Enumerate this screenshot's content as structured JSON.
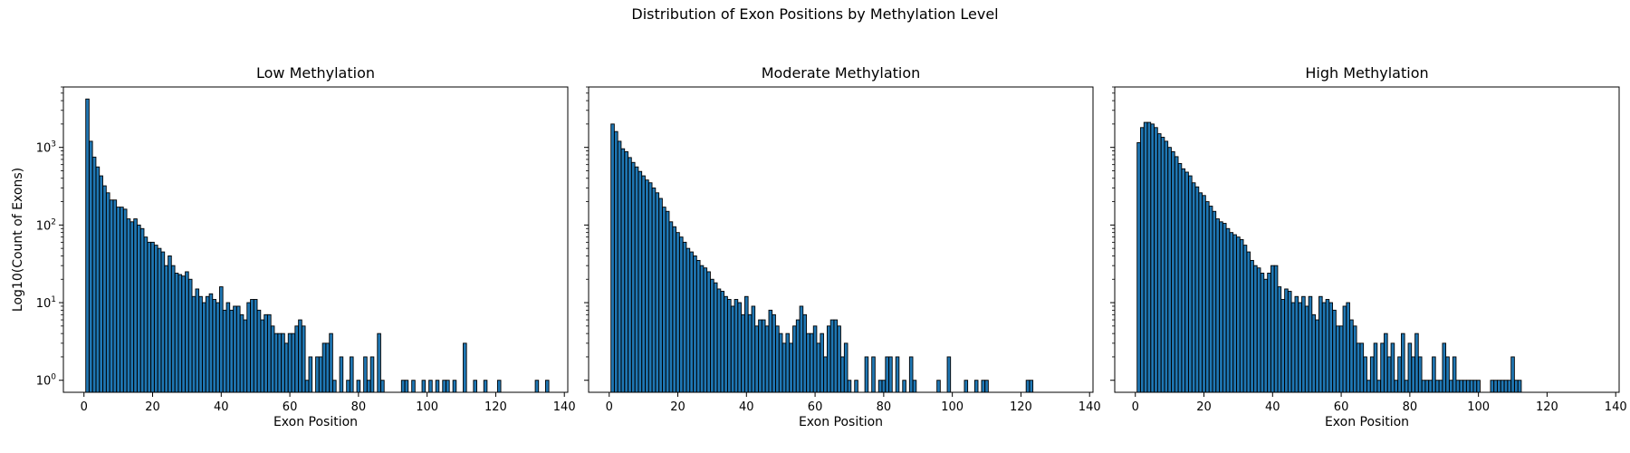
{
  "figure": {
    "suptitle": "Distribution of Exon Positions by Methylation Level"
  },
  "chart_data": [
    {
      "type": "bar",
      "scale": "log",
      "title": "Low Methylation",
      "xlabel": "Exon Position",
      "ylabel": "Log10(Count of Exons)",
      "xlim": [
        -6,
        141
      ],
      "ylim": [
        0.7,
        6000
      ],
      "xticks": [
        0,
        20,
        40,
        60,
        80,
        100,
        120,
        140
      ],
      "yticks": [
        "10^0",
        "10^1",
        "10^2",
        "10^3"
      ],
      "bar_color": "#1f77b4",
      "edge_color": "#000000",
      "x": [
        1,
        2,
        3,
        4,
        5,
        6,
        7,
        8,
        9,
        10,
        11,
        12,
        13,
        14,
        15,
        16,
        17,
        18,
        19,
        20,
        21,
        22,
        23,
        24,
        25,
        26,
        27,
        28,
        29,
        30,
        31,
        32,
        33,
        34,
        35,
        36,
        37,
        38,
        39,
        40,
        41,
        42,
        43,
        44,
        45,
        46,
        47,
        48,
        49,
        50,
        51,
        52,
        53,
        54,
        55,
        56,
        57,
        58,
        59,
        60,
        61,
        62,
        63,
        64,
        65,
        66,
        68,
        69,
        70,
        71,
        72,
        73,
        75,
        77,
        78,
        80,
        82,
        83,
        84,
        86,
        87,
        93,
        94,
        96,
        99,
        101,
        103,
        105,
        106,
        108,
        111,
        114,
        117,
        121,
        132,
        135
      ],
      "values": [
        4200,
        1200,
        750,
        560,
        430,
        320,
        260,
        210,
        210,
        170,
        170,
        160,
        120,
        110,
        120,
        100,
        90,
        70,
        60,
        60,
        55,
        50,
        45,
        30,
        40,
        30,
        24,
        23,
        22,
        25,
        20,
        12,
        15,
        12,
        10,
        12,
        13,
        11,
        10,
        16,
        8,
        10,
        8,
        9,
        9,
        7,
        6,
        10,
        11,
        11,
        8,
        6,
        7,
        7,
        5,
        4,
        4,
        4,
        3,
        4,
        4,
        5,
        6,
        5,
        1,
        2,
        2,
        2,
        3,
        3,
        4,
        1,
        2,
        1,
        2,
        1,
        2,
        1,
        2,
        4,
        1,
        1,
        1,
        1,
        1,
        1,
        1,
        1,
        1,
        1,
        3,
        1,
        1,
        1,
        1,
        1
      ]
    },
    {
      "type": "bar",
      "scale": "log",
      "title": "Moderate Methylation",
      "xlabel": "Exon Position",
      "ylabel": "",
      "xlim": [
        -6,
        141
      ],
      "ylim": [
        0.7,
        6000
      ],
      "xticks": [
        0,
        20,
        40,
        60,
        80,
        100,
        120,
        140
      ],
      "bar_color": "#1f77b4",
      "edge_color": "#000000",
      "x": [
        1,
        2,
        3,
        4,
        5,
        6,
        7,
        8,
        9,
        10,
        11,
        12,
        13,
        14,
        15,
        16,
        17,
        18,
        19,
        20,
        21,
        22,
        23,
        24,
        25,
        26,
        27,
        28,
        29,
        30,
        31,
        32,
        33,
        34,
        35,
        36,
        37,
        38,
        39,
        40,
        41,
        42,
        43,
        44,
        45,
        46,
        47,
        48,
        49,
        50,
        51,
        52,
        53,
        54,
        55,
        56,
        57,
        58,
        59,
        60,
        61,
        62,
        63,
        64,
        65,
        66,
        67,
        68,
        69,
        70,
        72,
        75,
        77,
        79,
        80,
        81,
        82,
        84,
        86,
        88,
        89,
        96,
        99,
        104,
        107,
        109,
        110,
        122,
        123
      ],
      "values": [
        2000,
        1600,
        1200,
        960,
        880,
        740,
        640,
        560,
        490,
        430,
        380,
        350,
        300,
        260,
        220,
        170,
        150,
        110,
        95,
        80,
        70,
        60,
        50,
        45,
        40,
        35,
        30,
        28,
        25,
        20,
        18,
        15,
        14,
        12,
        11,
        9,
        11,
        10,
        7,
        12,
        7,
        9,
        5,
        6,
        6,
        5,
        8,
        7,
        5,
        4,
        3,
        4,
        3,
        5,
        6,
        9,
        7,
        4,
        4,
        5,
        3,
        4,
        2,
        5,
        6,
        6,
        5,
        2,
        3,
        1,
        1,
        2,
        2,
        1,
        1,
        2,
        2,
        2,
        1,
        2,
        1,
        1,
        2,
        1,
        1,
        1,
        1,
        1,
        1
      ]
    },
    {
      "type": "bar",
      "scale": "log",
      "title": "High Methylation",
      "xlabel": "Exon Position",
      "ylabel": "",
      "xlim": [
        -6,
        141
      ],
      "ylim": [
        0.7,
        6000
      ],
      "xticks": [
        0,
        20,
        40,
        60,
        80,
        100,
        120,
        140
      ],
      "bar_color": "#1f77b4",
      "edge_color": "#000000",
      "x": [
        1,
        2,
        3,
        4,
        5,
        6,
        7,
        8,
        9,
        10,
        11,
        12,
        13,
        14,
        15,
        16,
        17,
        18,
        19,
        20,
        21,
        22,
        23,
        24,
        25,
        26,
        27,
        28,
        29,
        30,
        31,
        32,
        33,
        34,
        35,
        36,
        37,
        38,
        39,
        40,
        41,
        42,
        43,
        44,
        45,
        46,
        47,
        48,
        49,
        50,
        51,
        52,
        53,
        54,
        55,
        56,
        57,
        58,
        59,
        60,
        61,
        62,
        63,
        64,
        65,
        66,
        67,
        68,
        69,
        70,
        71,
        72,
        73,
        74,
        75,
        76,
        77,
        78,
        79,
        80,
        81,
        82,
        83,
        84,
        85,
        86,
        87,
        88,
        89,
        90,
        91,
        92,
        93,
        94,
        95,
        96,
        97,
        98,
        99,
        100,
        104,
        105,
        106,
        107,
        108,
        109,
        110,
        111,
        112
      ],
      "values": [
        1150,
        1800,
        2100,
        2100,
        2000,
        1800,
        1500,
        1350,
        1200,
        1000,
        880,
        760,
        620,
        530,
        480,
        430,
        350,
        310,
        260,
        240,
        200,
        175,
        150,
        120,
        110,
        105,
        90,
        80,
        75,
        70,
        65,
        55,
        45,
        35,
        30,
        28,
        24,
        20,
        24,
        30,
        30,
        16,
        11,
        15,
        14,
        10,
        12,
        10,
        12,
        9,
        12,
        7,
        6,
        12,
        10,
        11,
        10,
        8,
        5,
        5,
        9,
        10,
        6,
        5,
        3,
        3,
        2,
        1,
        2,
        3,
        1,
        3,
        4,
        2,
        3,
        1,
        2,
        4,
        1,
        3,
        2,
        4,
        2,
        1,
        1,
        1,
        2,
        1,
        1,
        3,
        2,
        1,
        2,
        1,
        1,
        1,
        1,
        1,
        1,
        1,
        1,
        1,
        1,
        1,
        1,
        1,
        2,
        1,
        1
      ]
    }
  ]
}
